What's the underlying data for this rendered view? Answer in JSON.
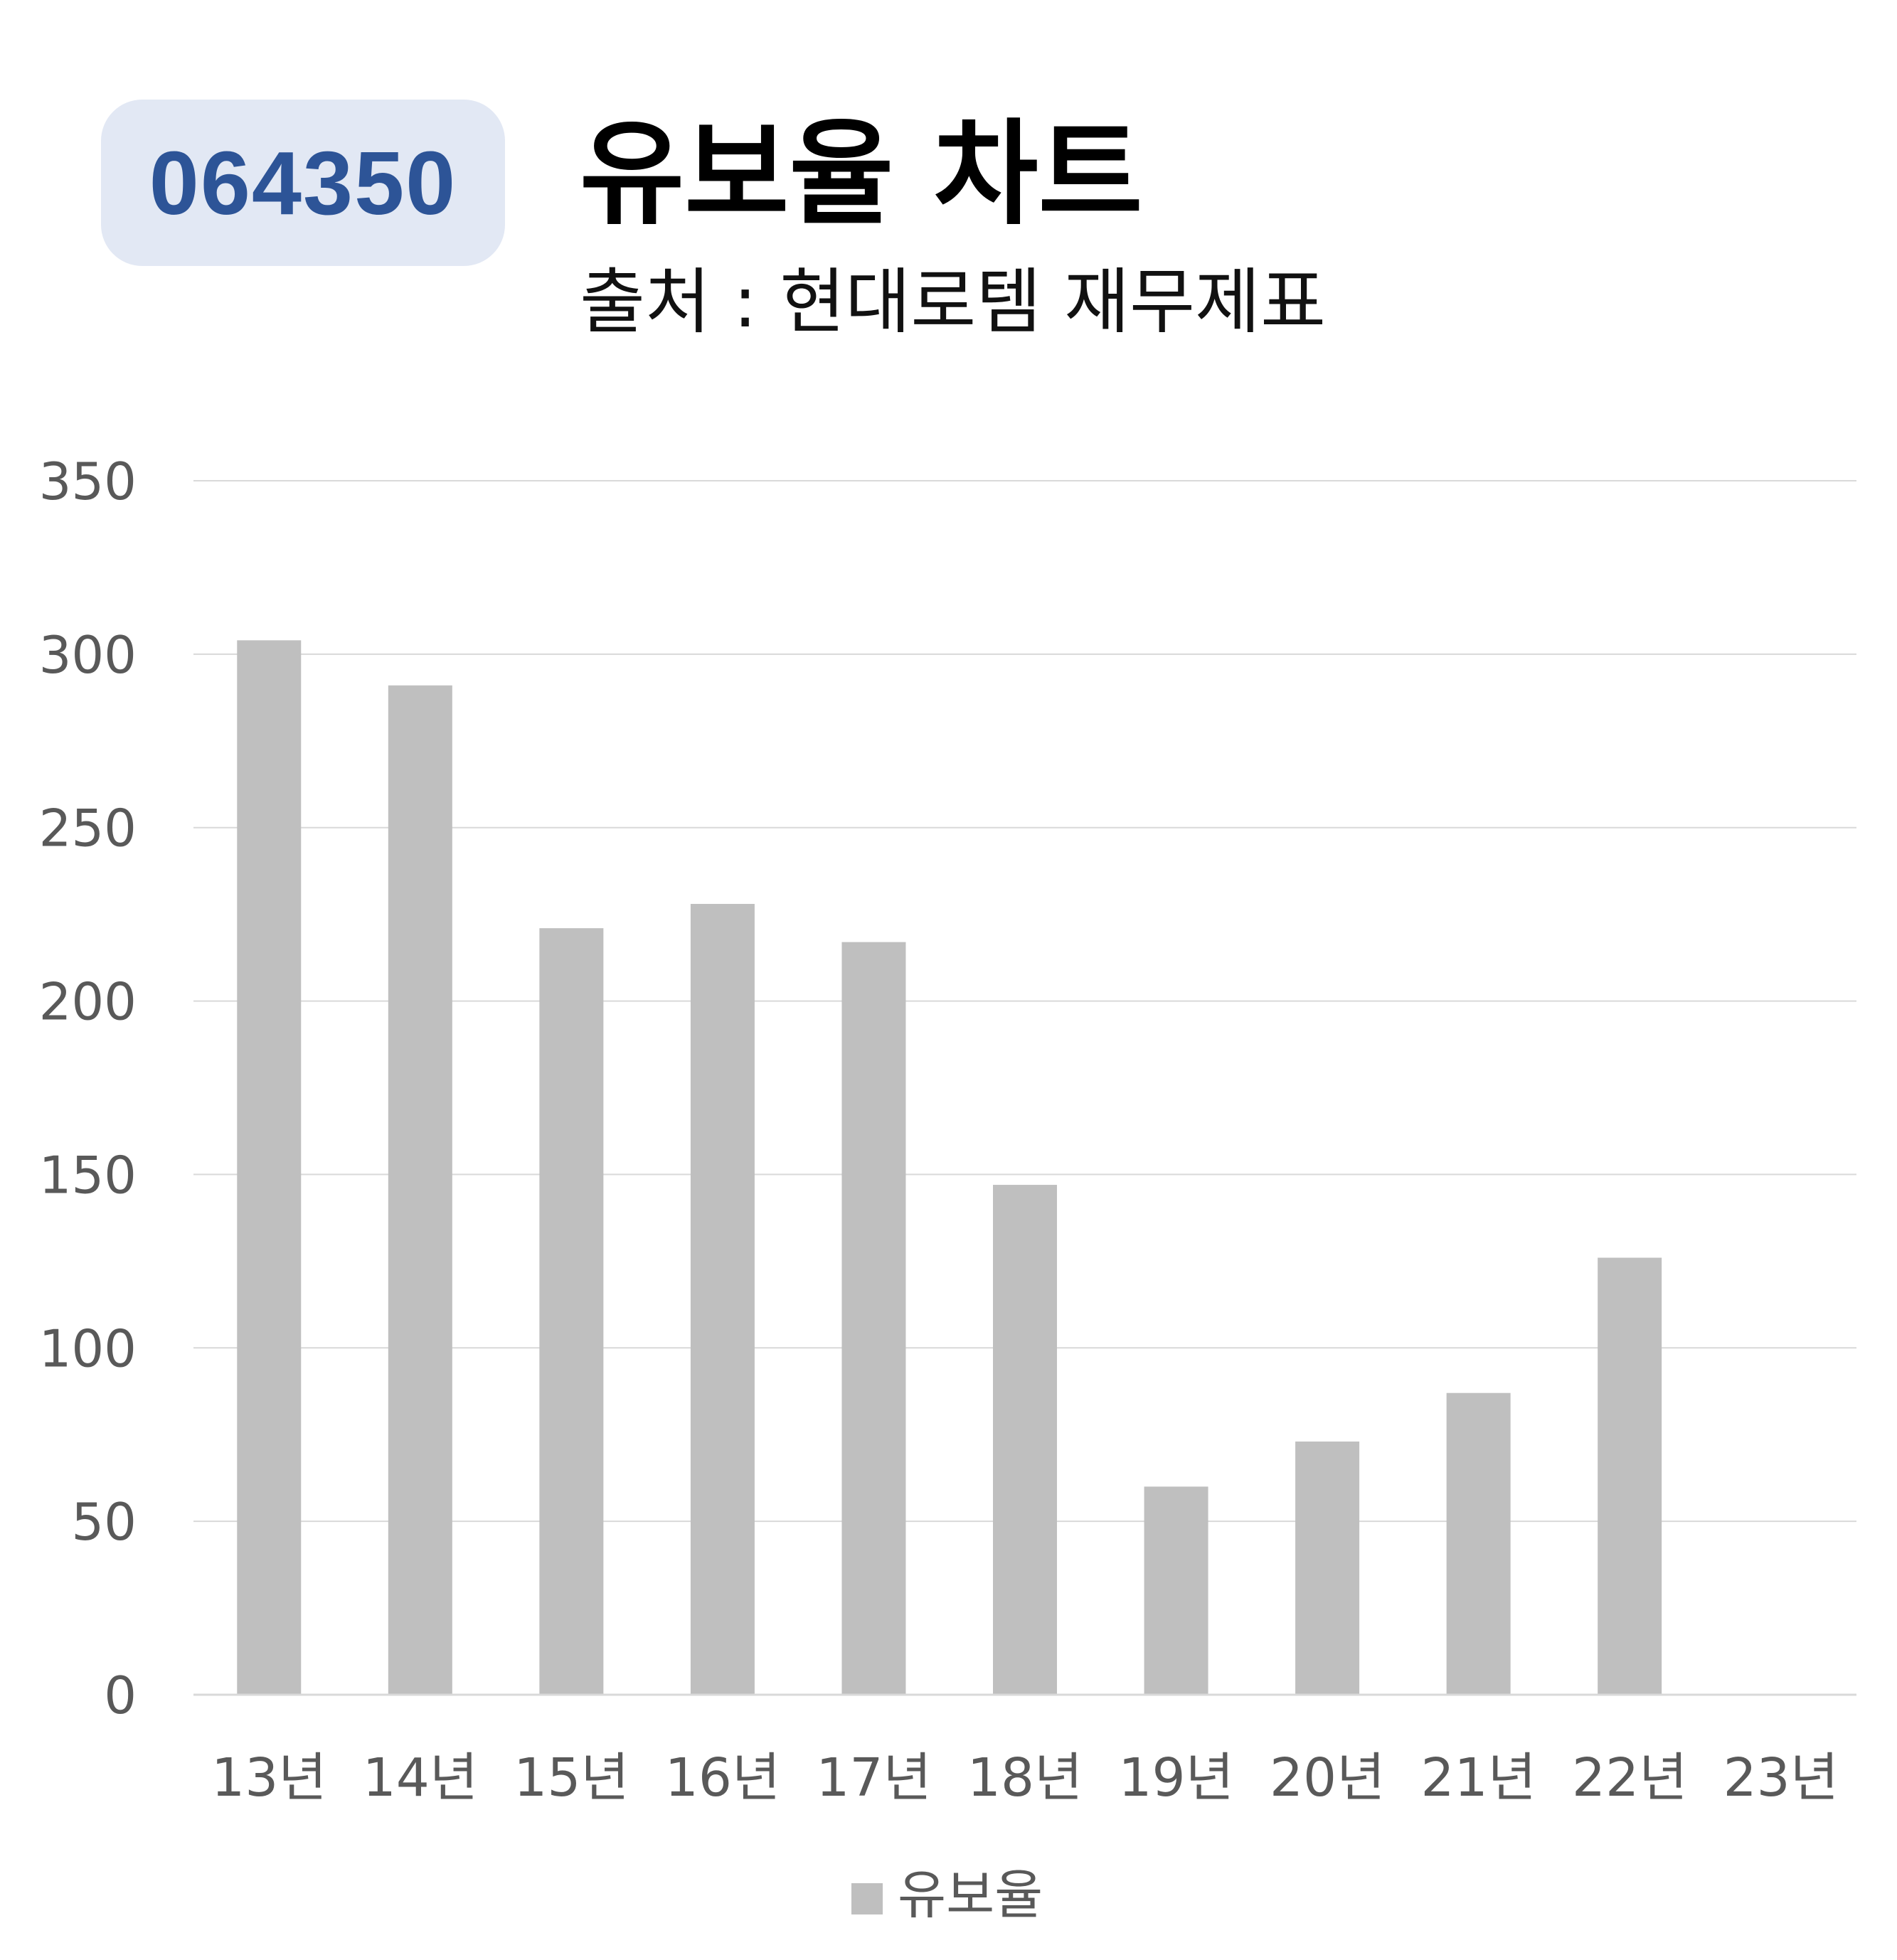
{
  "badge": {
    "code": "064350"
  },
  "header": {
    "title": "유보율 차트",
    "subtitle": "출처 : 현대로템 재무제표"
  },
  "colors": {
    "bar": "#bfbfbf",
    "grid": "#d9d9d9",
    "axis_text": "#595959",
    "badge_bg": "#e2e8f4",
    "badge_text": "#2d5497"
  },
  "chart_data": {
    "type": "bar",
    "categories": [
      "13년",
      "14년",
      "15년",
      "16년",
      "17년",
      "18년",
      "19년",
      "20년",
      "21년",
      "22년",
      "23년"
    ],
    "series": [
      {
        "name": "유보율",
        "values": [
          304,
          291,
          221,
          228,
          217,
          147,
          60,
          73,
          87,
          126,
          null
        ]
      }
    ],
    "ylim": [
      0,
      350
    ],
    "yticks": [
      0,
      50,
      100,
      150,
      200,
      250,
      300,
      350
    ],
    "grid": true,
    "legend": "bottom"
  }
}
